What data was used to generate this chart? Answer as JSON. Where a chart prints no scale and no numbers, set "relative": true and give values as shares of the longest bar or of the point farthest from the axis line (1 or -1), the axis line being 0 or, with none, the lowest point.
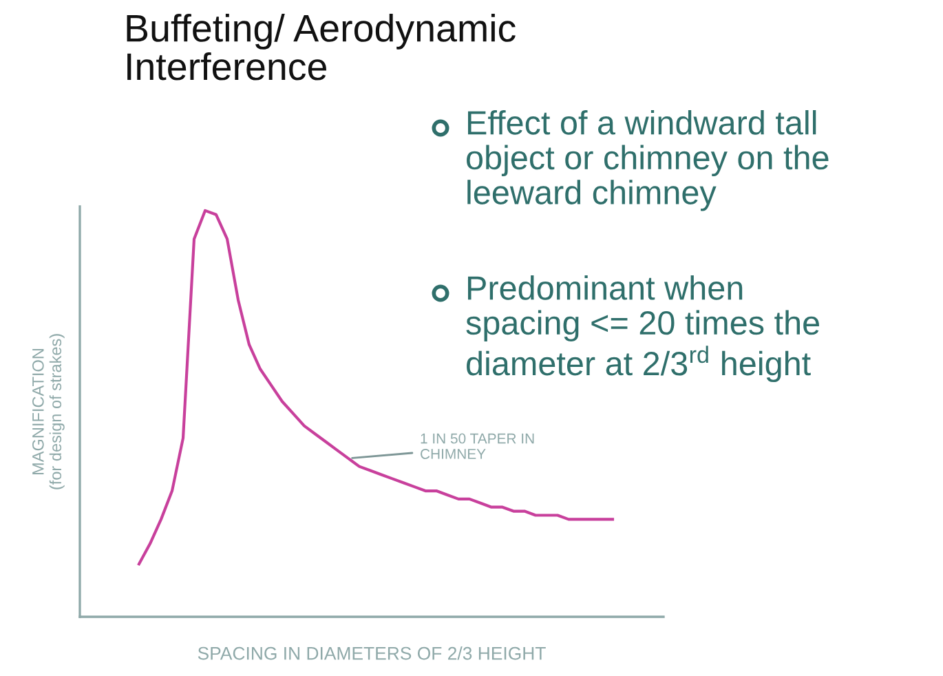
{
  "chart_data": {
    "type": "line",
    "relative": true,
    "title": "Buffeting/ Aerodynamic\nInterference",
    "xlabel": "SPACING IN DIAMETERS OF 2/3 HEIGHT",
    "ylabel": "MAGNIFICATION\n(for design of strakes)",
    "categories": [
      null,
      null,
      null,
      null,
      null,
      null,
      null,
      null,
      null,
      null,
      null,
      null,
      null,
      null,
      null,
      null,
      null,
      null,
      null,
      null,
      null,
      null,
      null,
      null,
      null,
      null,
      null,
      null,
      null,
      null,
      null,
      null,
      null,
      null,
      null,
      null,
      null,
      null,
      null,
      null,
      null,
      null,
      null,
      null
    ],
    "series": [
      {
        "color": "#c8409c",
        "values": [
          0.13,
          0.18,
          0.24,
          0.31,
          0.44,
          0.93,
          1,
          0.99,
          0.93,
          0.78,
          0.67,
          0.61,
          0.57,
          0.53,
          0.5,
          0.47,
          0.45,
          0.43,
          0.41,
          0.39,
          0.37,
          0.36,
          0.35,
          0.34,
          0.33,
          0.32,
          0.31,
          0.31,
          0.3,
          0.29,
          0.29,
          0.28,
          0.27,
          0.27,
          0.26,
          0.26,
          0.25,
          0.25,
          0.25,
          0.24,
          0.24,
          0.24,
          0.24,
          0.24
        ]
      }
    ],
    "annotations": [
      "1 IN 50 TAPER IN\nCHIMNEY",
      "Effect of a windward tall\nobject or chimney on the\nleeward chimney",
      "Predominant when\nspacing <= 20 times the\ndiameter at 2/3$^{rd}$ height"
    ],
    "grid": false,
    "marker": "none",
    "line_style": "solid"
  }
}
